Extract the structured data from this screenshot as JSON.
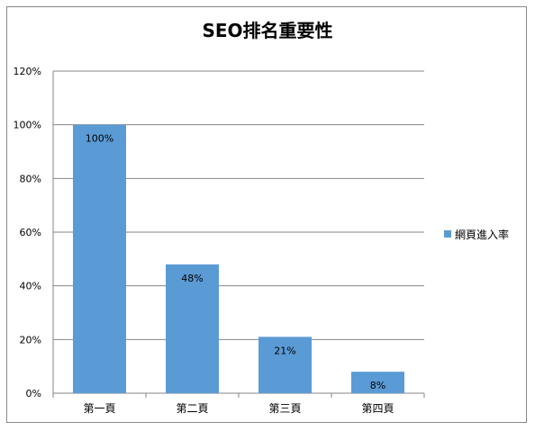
{
  "chart_data": {
    "type": "bar",
    "title": "SEO排名重要性",
    "xlabel": "",
    "ylabel": "",
    "categories": [
      "第一頁",
      "第二頁",
      "第三頁",
      "第四頁"
    ],
    "series": [
      {
        "name": "網頁進入率",
        "values": [
          100,
          48,
          21,
          8
        ],
        "color": "#5B9BD5"
      }
    ],
    "data_labels": [
      "100%",
      "48%",
      "21%",
      "8%"
    ],
    "y_ticks": [
      "0%",
      "20%",
      "40%",
      "60%",
      "80%",
      "100%",
      "120%"
    ],
    "ylim": [
      0,
      120
    ],
    "grid": true,
    "legend_position": "right"
  }
}
